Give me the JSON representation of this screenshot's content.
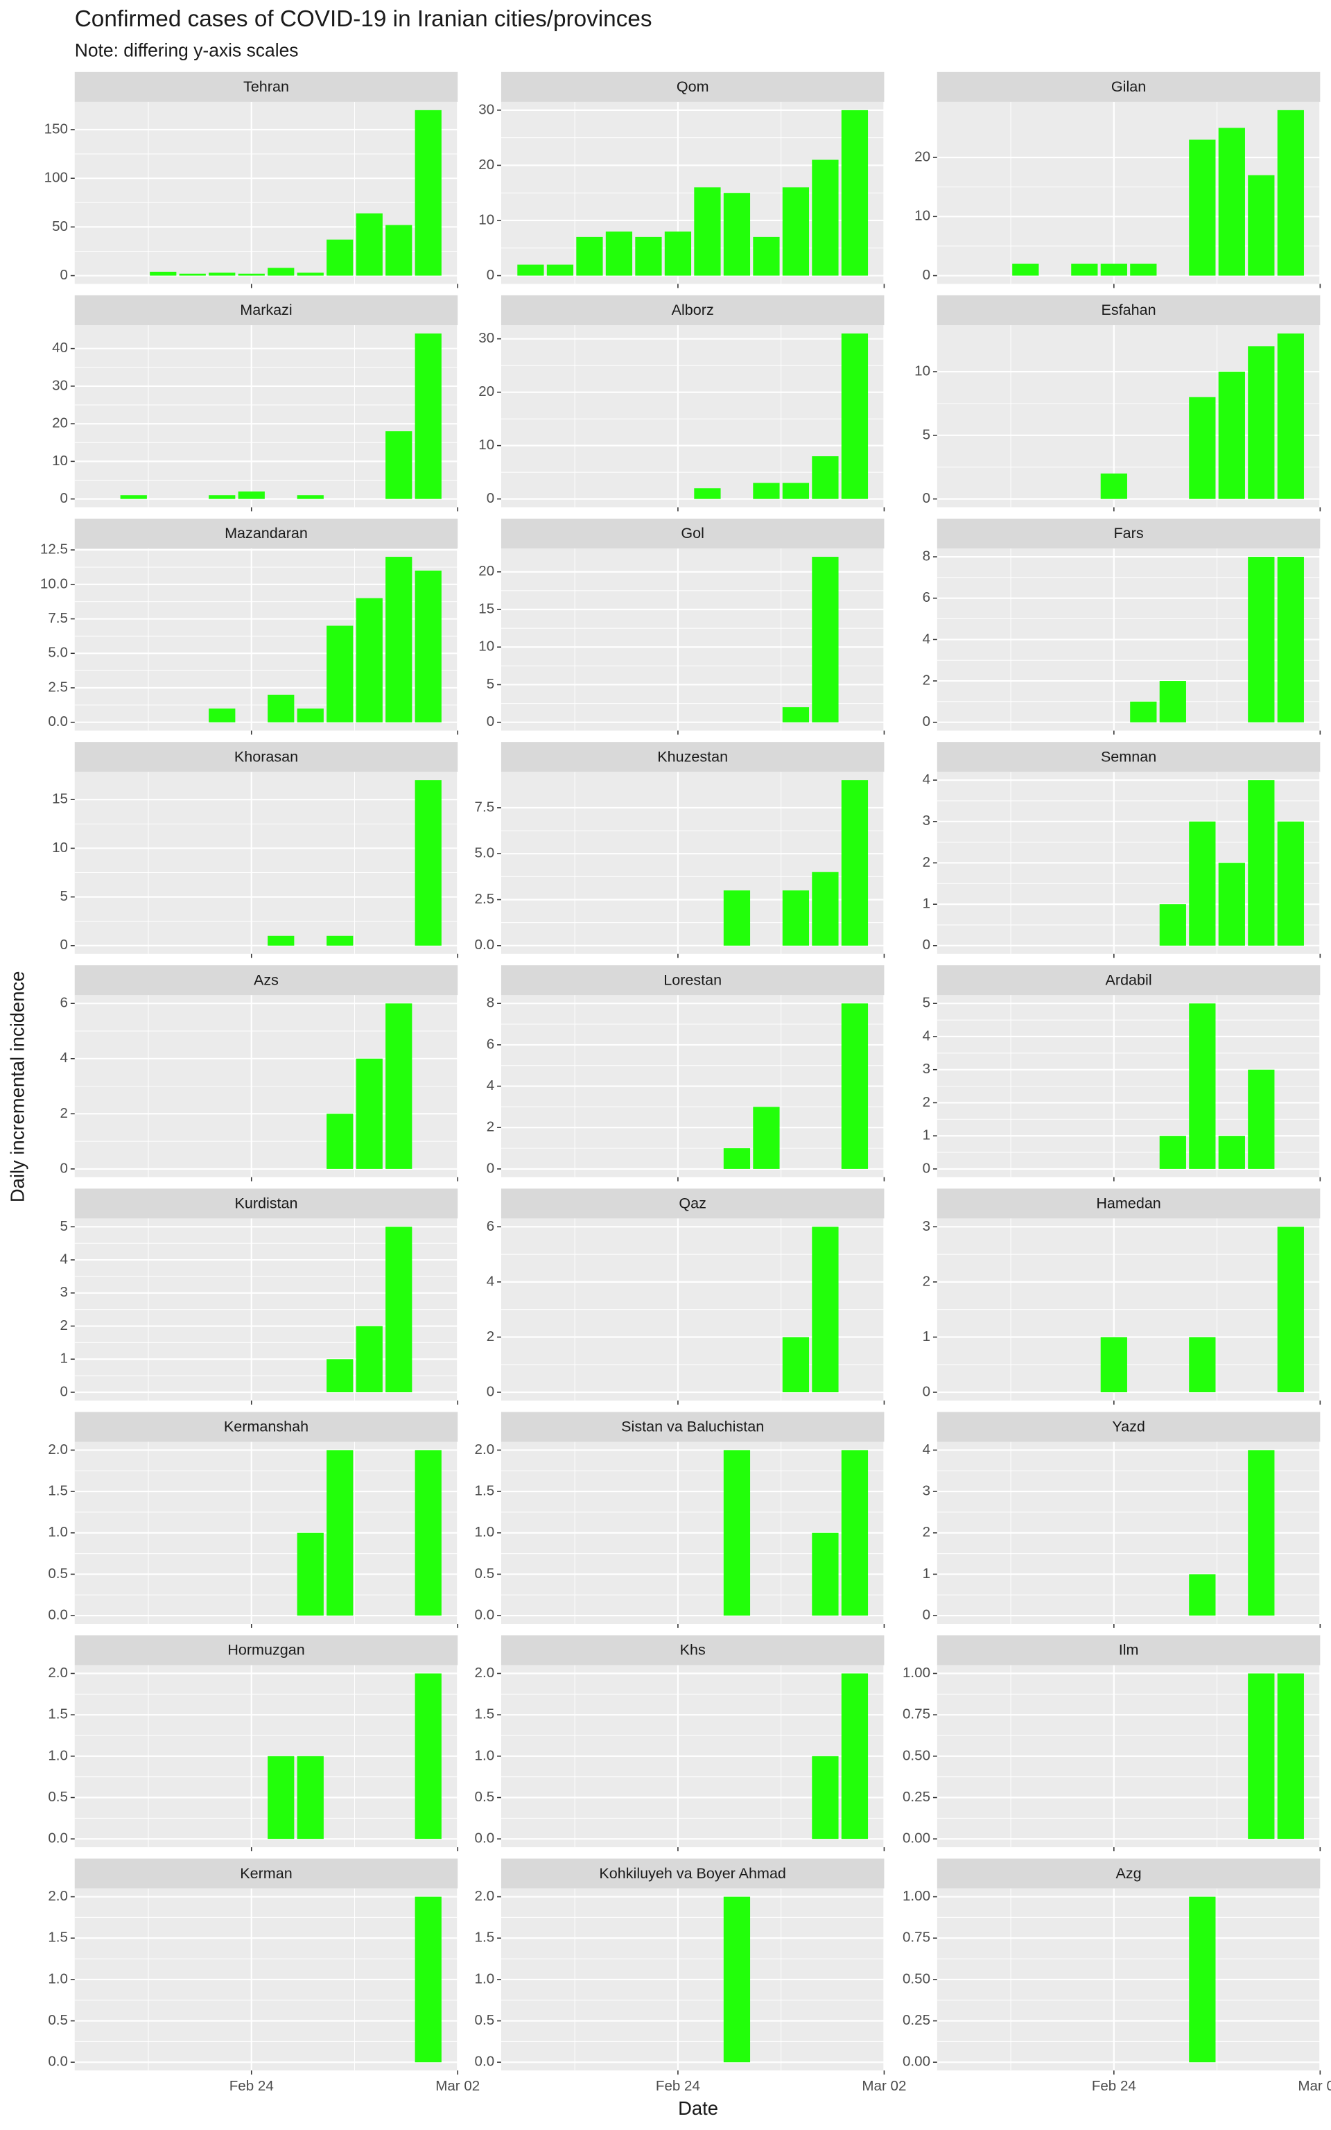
{
  "title": "Confirmed cases of COVID-19 in Iranian cities/provinces",
  "subtitle": "Note: differing y-axis scales",
  "x_label": "Date",
  "y_label": "Daily incremental incidence",
  "chart_data": [
    {
      "type": "bar",
      "title": "Tehran",
      "x": [
        "Feb 21",
        "Feb 22",
        "Feb 23",
        "Feb 24",
        "Feb 25",
        "Feb 26",
        "Feb 27",
        "Feb 28",
        "Feb 29",
        "Mar 01"
      ],
      "values": [
        4,
        2,
        3,
        2,
        8,
        3,
        37,
        64,
        52,
        170
      ],
      "color": "#22ff0a",
      "xlim": [
        "Feb 18",
        "Mar 02"
      ],
      "xticks": [
        "Feb 24",
        "Mar 02"
      ],
      "ylim": [
        -8.5,
        178.5
      ],
      "yticks": [
        0,
        50,
        100,
        150
      ],
      "grid": true
    },
    {
      "type": "bar",
      "title": "Qom",
      "x": [
        "Feb 19",
        "Feb 20",
        "Feb 21",
        "Feb 22",
        "Feb 23",
        "Feb 24",
        "Feb 25",
        "Feb 26",
        "Feb 27",
        "Feb 28",
        "Feb 29",
        "Mar 01"
      ],
      "values": [
        2,
        2,
        7,
        8,
        7,
        8,
        16,
        15,
        7,
        16,
        21,
        30
      ],
      "color": "#22ff0a",
      "xlim": [
        "Feb 18",
        "Mar 02"
      ],
      "xticks": [
        "Feb 24",
        "Mar 02"
      ],
      "ylim": [
        -1.5,
        31.5
      ],
      "yticks": [
        0,
        10,
        20,
        30
      ],
      "grid": true
    },
    {
      "type": "bar",
      "title": "Gilan",
      "x": [
        "Feb 21",
        "Feb 23",
        "Feb 24",
        "Feb 25",
        "Feb 27",
        "Feb 28",
        "Feb 29",
        "Mar 01"
      ],
      "values": [
        2,
        2,
        2,
        2,
        23,
        25,
        17,
        28
      ],
      "color": "#22ff0a",
      "xlim": [
        "Feb 18",
        "Mar 02"
      ],
      "xticks": [
        "Feb 24",
        "Mar 02"
      ],
      "ylim": [
        -1.4,
        29.4
      ],
      "yticks": [
        0,
        10,
        20
      ],
      "grid": true
    },
    {
      "type": "bar",
      "title": "Markazi",
      "x": [
        "Feb 20",
        "Feb 23",
        "Feb 24",
        "Feb 26",
        "Feb 29",
        "Mar 01"
      ],
      "values": [
        1,
        1,
        2,
        1,
        18,
        44
      ],
      "color": "#22ff0a",
      "xlim": [
        "Feb 18",
        "Mar 02"
      ],
      "xticks": [
        "Feb 24",
        "Mar 02"
      ],
      "ylim": [
        -2.2,
        46.2
      ],
      "yticks": [
        0,
        10,
        20,
        30,
        40
      ],
      "grid": true
    },
    {
      "type": "bar",
      "title": "Alborz",
      "x": [
        "Feb 25",
        "Feb 27",
        "Feb 28",
        "Feb 29",
        "Mar 01"
      ],
      "values": [
        2,
        3,
        3,
        8,
        31
      ],
      "color": "#22ff0a",
      "xlim": [
        "Feb 18",
        "Mar 02"
      ],
      "xticks": [
        "Feb 24",
        "Mar 02"
      ],
      "ylim": [
        -1.55,
        32.55
      ],
      "yticks": [
        0,
        10,
        20,
        30
      ],
      "grid": true
    },
    {
      "type": "bar",
      "title": "Esfahan",
      "x": [
        "Feb 24",
        "Feb 27",
        "Feb 28",
        "Feb 29",
        "Mar 01"
      ],
      "values": [
        2,
        8,
        10,
        12,
        13
      ],
      "color": "#22ff0a",
      "xlim": [
        "Feb 18",
        "Mar 02"
      ],
      "xticks": [
        "Feb 24",
        "Mar 02"
      ],
      "ylim": [
        -0.65,
        13.65
      ],
      "yticks": [
        0,
        5,
        10
      ],
      "grid": true
    },
    {
      "type": "bar",
      "title": "Mazandaran",
      "x": [
        "Feb 23",
        "Feb 25",
        "Feb 26",
        "Feb 27",
        "Feb 28",
        "Feb 29",
        "Mar 01"
      ],
      "values": [
        1,
        2,
        1,
        7,
        9,
        12,
        11
      ],
      "color": "#22ff0a",
      "xlim": [
        "Feb 18",
        "Mar 02"
      ],
      "xticks": [
        "Feb 24",
        "Mar 02"
      ],
      "ylim": [
        -0.6,
        12.6
      ],
      "yticks": [
        {
          "value": 0,
          "label": "0.0"
        },
        2.5,
        {
          "value": 5,
          "label": "5.0"
        },
        7.5,
        {
          "value": 10,
          "label": "10.0"
        },
        12.5
      ],
      "grid": true
    },
    {
      "type": "bar",
      "title": "Gol",
      "x": [
        "Feb 28",
        "Feb 29"
      ],
      "values": [
        2,
        22
      ],
      "color": "#22ff0a",
      "xlim": [
        "Feb 18",
        "Mar 02"
      ],
      "xticks": [
        "Feb 24",
        "Mar 02"
      ],
      "ylim": [
        -1.1,
        23.1
      ],
      "yticks": [
        0,
        5,
        10,
        15,
        20
      ],
      "grid": true
    },
    {
      "type": "bar",
      "title": "Fars",
      "x": [
        "Feb 25",
        "Feb 26",
        "Feb 29",
        "Mar 01"
      ],
      "values": [
        1,
        2,
        8,
        8
      ],
      "color": "#22ff0a",
      "xlim": [
        "Feb 18",
        "Mar 02"
      ],
      "xticks": [
        "Feb 24",
        "Mar 02"
      ],
      "ylim": [
        -0.4,
        8.4
      ],
      "yticks": [
        0,
        2,
        4,
        6,
        8
      ],
      "grid": true
    },
    {
      "type": "bar",
      "title": "Khorasan",
      "x": [
        "Feb 25",
        "Feb 27",
        "Mar 01"
      ],
      "values": [
        1,
        1,
        17
      ],
      "color": "#22ff0a",
      "xlim": [
        "Feb 18",
        "Mar 02"
      ],
      "xticks": [
        "Feb 24",
        "Mar 02"
      ],
      "ylim": [
        -0.85,
        17.85
      ],
      "yticks": [
        0,
        5,
        10,
        15
      ],
      "grid": true
    },
    {
      "type": "bar",
      "title": "Khuzestan",
      "x": [
        "Feb 26",
        "Feb 28",
        "Feb 29",
        "Mar 01"
      ],
      "values": [
        3,
        3,
        4,
        9
      ],
      "color": "#22ff0a",
      "xlim": [
        "Feb 18",
        "Mar 02"
      ],
      "xticks": [
        "Feb 24",
        "Mar 02"
      ],
      "ylim": [
        -0.45,
        9.45
      ],
      "yticks": [
        {
          "value": 0,
          "label": "0.0"
        },
        2.5,
        {
          "value": 5,
          "label": "5.0"
        },
        7.5
      ],
      "grid": true
    },
    {
      "type": "bar",
      "title": "Semnan",
      "x": [
        "Feb 26",
        "Feb 27",
        "Feb 28",
        "Feb 29",
        "Mar 01"
      ],
      "values": [
        1,
        3,
        2,
        4,
        3
      ],
      "color": "#22ff0a",
      "xlim": [
        "Feb 18",
        "Mar 02"
      ],
      "xticks": [
        "Feb 24",
        "Mar 02"
      ],
      "ylim": [
        -0.2,
        4.2
      ],
      "yticks": [
        0,
        1,
        2,
        3,
        4
      ],
      "grid": true
    },
    {
      "type": "bar",
      "title": "Azs",
      "x": [
        "Feb 27",
        "Feb 28",
        "Feb 29"
      ],
      "values": [
        2,
        4,
        6
      ],
      "color": "#22ff0a",
      "xlim": [
        "Feb 18",
        "Mar 02"
      ],
      "xticks": [
        "Feb 24",
        "Mar 02"
      ],
      "ylim": [
        -0.3,
        6.3
      ],
      "yticks": [
        0,
        2,
        4,
        6
      ],
      "grid": true
    },
    {
      "type": "bar",
      "title": "Lorestan",
      "x": [
        "Feb 26",
        "Feb 27",
        "Mar 01"
      ],
      "values": [
        1,
        3,
        8
      ],
      "color": "#22ff0a",
      "xlim": [
        "Feb 18",
        "Mar 02"
      ],
      "xticks": [
        "Feb 24",
        "Mar 02"
      ],
      "ylim": [
        -0.4,
        8.4
      ],
      "yticks": [
        0,
        2,
        4,
        6,
        8
      ],
      "grid": true
    },
    {
      "type": "bar",
      "title": "Ardabil",
      "x": [
        "Feb 26",
        "Feb 27",
        "Feb 28",
        "Feb 29"
      ],
      "values": [
        1,
        5,
        1,
        3
      ],
      "color": "#22ff0a",
      "xlim": [
        "Feb 18",
        "Mar 02"
      ],
      "xticks": [
        "Feb 24",
        "Mar 02"
      ],
      "ylim": [
        -0.25,
        5.25
      ],
      "yticks": [
        0,
        1,
        2,
        3,
        4,
        5
      ],
      "grid": true
    },
    {
      "type": "bar",
      "title": "Kurdistan",
      "x": [
        "Feb 27",
        "Feb 28",
        "Feb 29"
      ],
      "values": [
        1,
        2,
        5
      ],
      "color": "#22ff0a",
      "xlim": [
        "Feb 18",
        "Mar 02"
      ],
      "xticks": [
        "Feb 24",
        "Mar 02"
      ],
      "ylim": [
        -0.25,
        5.25
      ],
      "yticks": [
        0,
        1,
        2,
        3,
        4,
        5
      ],
      "grid": true
    },
    {
      "type": "bar",
      "title": "Qaz",
      "x": [
        "Feb 28",
        "Feb 29"
      ],
      "values": [
        2,
        6
      ],
      "color": "#22ff0a",
      "xlim": [
        "Feb 18",
        "Mar 02"
      ],
      "xticks": [
        "Feb 24",
        "Mar 02"
      ],
      "ylim": [
        -0.3,
        6.3
      ],
      "yticks": [
        0,
        2,
        4,
        6
      ],
      "grid": true
    },
    {
      "type": "bar",
      "title": "Hamedan",
      "x": [
        "Feb 24",
        "Feb 27",
        "Mar 01"
      ],
      "values": [
        1,
        1,
        3
      ],
      "color": "#22ff0a",
      "xlim": [
        "Feb 18",
        "Mar 02"
      ],
      "xticks": [
        "Feb 24",
        "Mar 02"
      ],
      "ylim": [
        -0.15,
        3.15
      ],
      "yticks": [
        0,
        1,
        2,
        3
      ],
      "grid": true
    },
    {
      "type": "bar",
      "title": "Kermanshah",
      "x": [
        "Feb 26",
        "Feb 27",
        "Mar 01"
      ],
      "values": [
        1,
        2,
        2
      ],
      "color": "#22ff0a",
      "xlim": [
        "Feb 18",
        "Mar 02"
      ],
      "xticks": [
        "Feb 24",
        "Mar 02"
      ],
      "ylim": [
        -0.1,
        2.1
      ],
      "yticks": [
        {
          "value": 0,
          "label": "0.0"
        },
        0.5,
        {
          "value": 1,
          "label": "1.0"
        },
        1.5,
        {
          "value": 2,
          "label": "2.0"
        }
      ],
      "grid": true
    },
    {
      "type": "bar",
      "title": "Sistan va Baluchistan",
      "x": [
        "Feb 26",
        "Feb 29",
        "Mar 01"
      ],
      "values": [
        2,
        1,
        2
      ],
      "color": "#22ff0a",
      "xlim": [
        "Feb 18",
        "Mar 02"
      ],
      "xticks": [
        "Feb 24",
        "Mar 02"
      ],
      "ylim": [
        -0.1,
        2.1
      ],
      "yticks": [
        {
          "value": 0,
          "label": "0.0"
        },
        0.5,
        {
          "value": 1,
          "label": "1.0"
        },
        1.5,
        {
          "value": 2,
          "label": "2.0"
        }
      ],
      "grid": true
    },
    {
      "type": "bar",
      "title": "Yazd",
      "x": [
        "Feb 27",
        "Feb 29"
      ],
      "values": [
        1,
        4
      ],
      "color": "#22ff0a",
      "xlim": [
        "Feb 18",
        "Mar 02"
      ],
      "xticks": [
        "Feb 24",
        "Mar 02"
      ],
      "ylim": [
        -0.2,
        4.2
      ],
      "yticks": [
        0,
        1,
        2,
        3,
        4
      ],
      "grid": true
    },
    {
      "type": "bar",
      "title": "Hormuzgan",
      "x": [
        "Feb 25",
        "Feb 26",
        "Mar 01"
      ],
      "values": [
        1,
        1,
        2
      ],
      "color": "#22ff0a",
      "xlim": [
        "Feb 18",
        "Mar 02"
      ],
      "xticks": [
        "Feb 24",
        "Mar 02"
      ],
      "ylim": [
        -0.1,
        2.1
      ],
      "yticks": [
        {
          "value": 0,
          "label": "0.0"
        },
        0.5,
        {
          "value": 1,
          "label": "1.0"
        },
        1.5,
        {
          "value": 2,
          "label": "2.0"
        }
      ],
      "grid": true
    },
    {
      "type": "bar",
      "title": "Khs",
      "x": [
        "Feb 29",
        "Mar 01"
      ],
      "values": [
        1,
        2
      ],
      "color": "#22ff0a",
      "xlim": [
        "Feb 18",
        "Mar 02"
      ],
      "xticks": [
        "Feb 24",
        "Mar 02"
      ],
      "ylim": [
        -0.1,
        2.1
      ],
      "yticks": [
        {
          "value": 0,
          "label": "0.0"
        },
        0.5,
        {
          "value": 1,
          "label": "1.0"
        },
        1.5,
        {
          "value": 2,
          "label": "2.0"
        }
      ],
      "grid": true
    },
    {
      "type": "bar",
      "title": "Ilm",
      "x": [
        "Feb 29",
        "Mar 01"
      ],
      "values": [
        1,
        1
      ],
      "color": "#22ff0a",
      "xlim": [
        "Feb 18",
        "Mar 02"
      ],
      "xticks": [
        "Feb 24",
        "Mar 02"
      ],
      "ylim": [
        -0.05,
        1.05
      ],
      "yticks": [
        {
          "value": 0,
          "label": "0.00"
        },
        0.25,
        {
          "value": 0.5,
          "label": "0.50"
        },
        0.75,
        {
          "value": 1,
          "label": "1.00"
        }
      ],
      "grid": true
    },
    {
      "type": "bar",
      "title": "Kerman",
      "x": [
        "Mar 01"
      ],
      "values": [
        2
      ],
      "color": "#22ff0a",
      "xlim": [
        "Feb 18",
        "Mar 02"
      ],
      "xticks": [
        "Feb 24",
        "Mar 02"
      ],
      "ylim": [
        -0.1,
        2.1
      ],
      "yticks": [
        {
          "value": 0,
          "label": "0.0"
        },
        0.5,
        {
          "value": 1,
          "label": "1.0"
        },
        1.5,
        {
          "value": 2,
          "label": "2.0"
        }
      ],
      "grid": true
    },
    {
      "type": "bar",
      "title": "Kohkiluyeh va Boyer Ahmad",
      "x": [
        "Feb 26"
      ],
      "values": [
        2
      ],
      "color": "#22ff0a",
      "xlim": [
        "Feb 18",
        "Mar 02"
      ],
      "xticks": [
        "Feb 24",
        "Mar 02"
      ],
      "ylim": [
        -0.1,
        2.1
      ],
      "yticks": [
        {
          "value": 0,
          "label": "0.0"
        },
        0.5,
        {
          "value": 1,
          "label": "1.0"
        },
        1.5,
        {
          "value": 2,
          "label": "2.0"
        }
      ],
      "grid": true
    },
    {
      "type": "bar",
      "title": "Azg",
      "x": [
        "Feb 27"
      ],
      "values": [
        1
      ],
      "color": "#22ff0a",
      "xlim": [
        "Feb 18",
        "Mar 02"
      ],
      "xticks": [
        "Feb 24",
        "Mar 02"
      ],
      "ylim": [
        -0.05,
        1.05
      ],
      "yticks": [
        {
          "value": 0,
          "label": "0.00"
        },
        0.25,
        {
          "value": 0.5,
          "label": "0.50"
        },
        0.75,
        {
          "value": 1,
          "label": "1.00"
        }
      ],
      "grid": true
    }
  ]
}
